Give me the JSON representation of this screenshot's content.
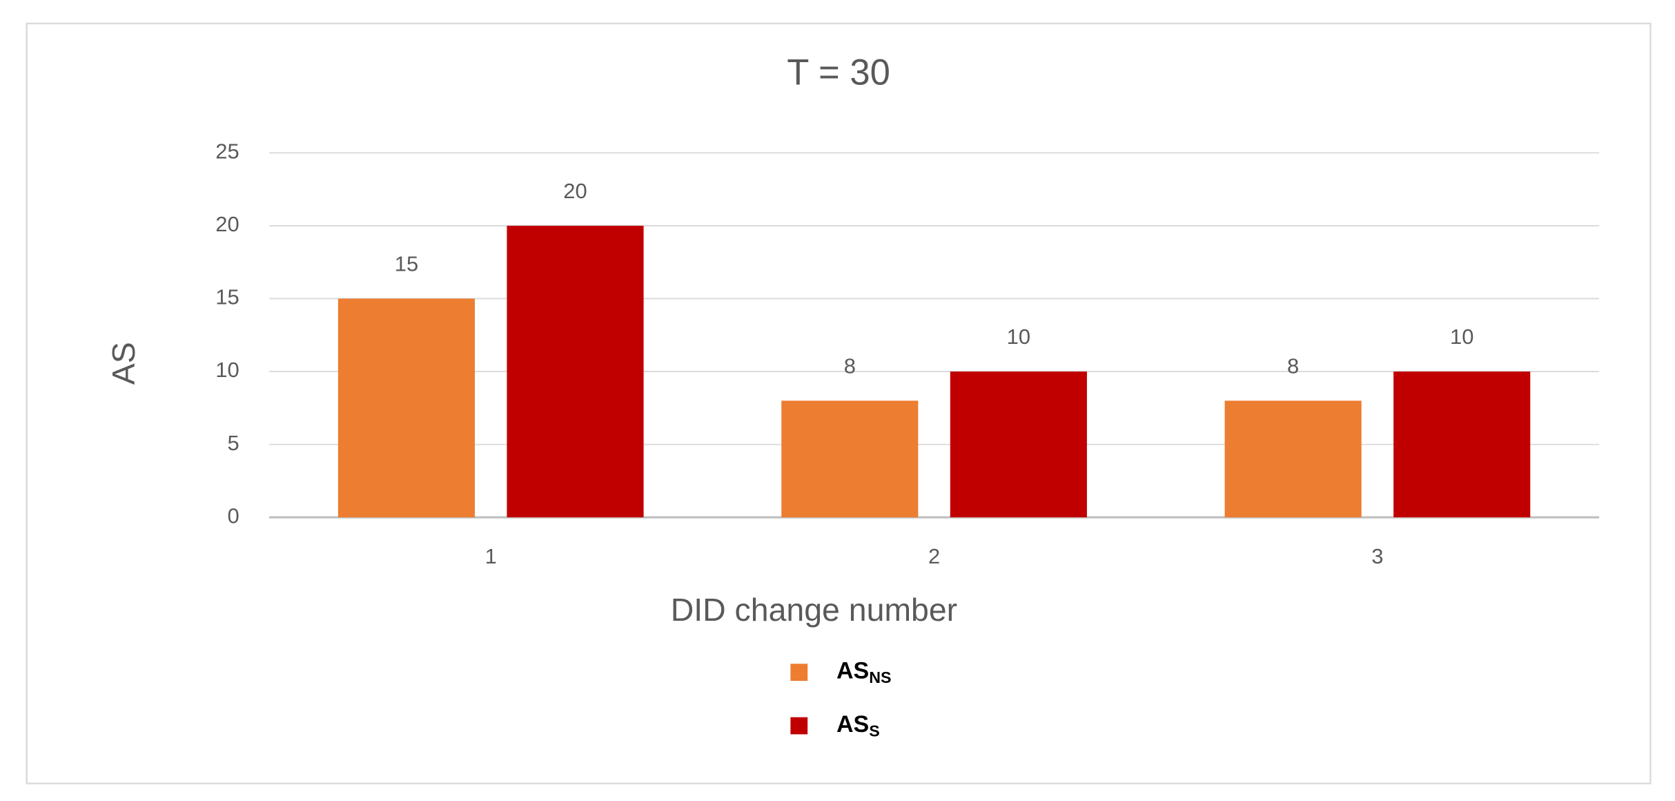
{
  "chart_data": {
    "type": "bar",
    "title": "T = 30",
    "x_label": "DID change number",
    "y_label": "AS",
    "categories": [
      "1",
      "2",
      "3"
    ],
    "series": [
      {
        "name": "AS",
        "name_subscript": "NS",
        "color": "#ed7d31",
        "values": [
          15,
          8,
          8
        ]
      },
      {
        "name": "AS",
        "name_subscript": "S",
        "color": "#c00000",
        "values": [
          20,
          10,
          10
        ]
      }
    ],
    "ylim": [
      0,
      25
    ],
    "yticks": [
      0,
      5,
      10,
      15,
      20,
      25
    ],
    "grid": true,
    "legend": "bottom"
  }
}
